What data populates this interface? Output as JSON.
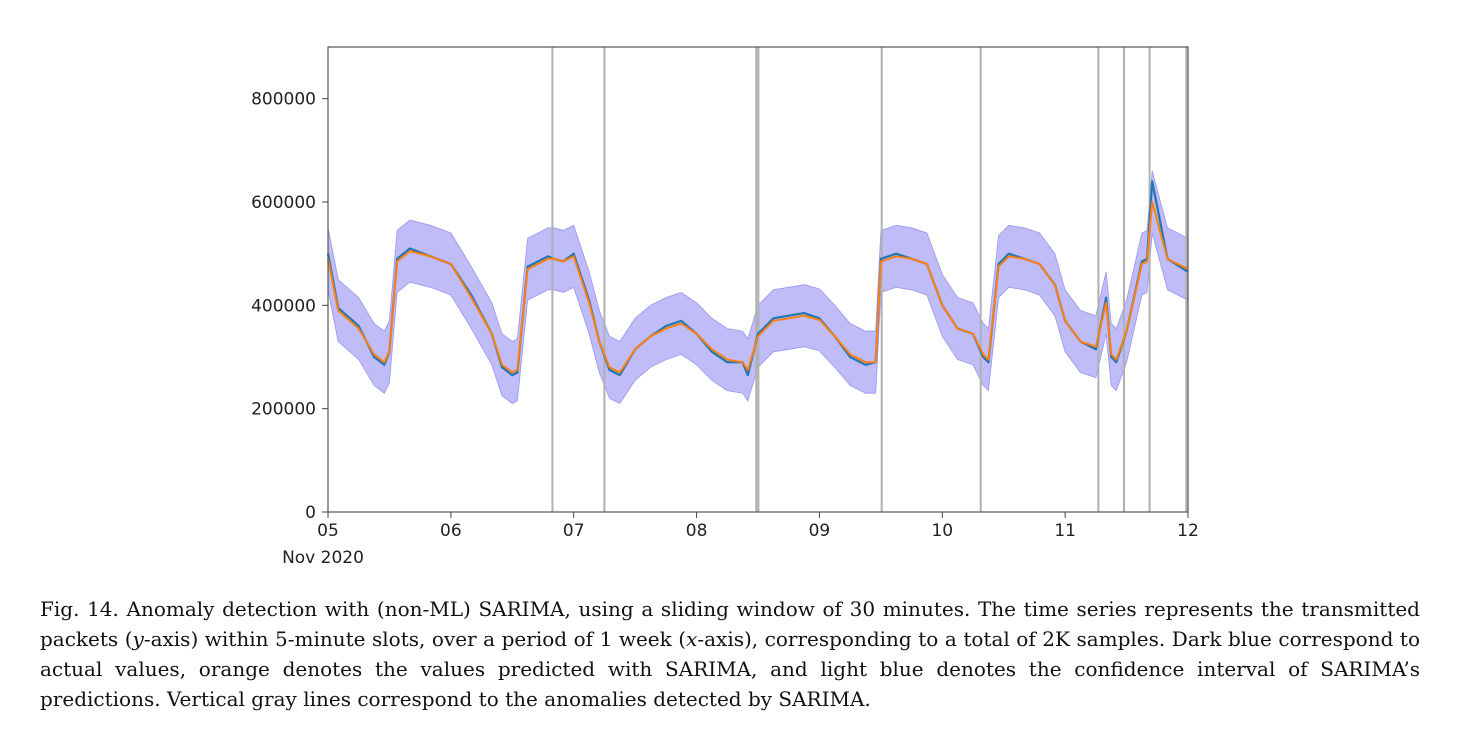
{
  "chart_data": {
    "type": "line",
    "title": "",
    "xlabel": "",
    "ylabel": "",
    "x_tick_labels": [
      "05",
      "06",
      "07",
      "08",
      "09",
      "10",
      "11",
      "12"
    ],
    "x_axis_sublabel": "Nov 2020",
    "x_range": [
      "2020-11-05T00:00",
      "2020-11-12T00:00"
    ],
    "ylim": [
      0,
      900000
    ],
    "y_ticks": [
      0,
      200000,
      400000,
      600000,
      800000
    ],
    "y_tick_labels": [
      "0",
      "200000",
      "400000",
      "600000",
      "800000"
    ],
    "grid": false,
    "legend": "none",
    "colors": {
      "actual": "#1f77b4",
      "predicted": "#ff7f0e",
      "confidence_band": "#a9a6f5",
      "anomaly_line": "#b0b0b0"
    },
    "series": [
      {
        "role": "actual",
        "x": [
          "2020-11-05T00:00",
          "2020-11-05T02:00",
          "2020-11-05T06:00",
          "2020-11-05T09:00",
          "2020-11-05T11:00",
          "2020-11-05T12:00",
          "2020-11-05T13:30",
          "2020-11-05T16:00",
          "2020-11-05T20:00",
          "2020-11-06T00:00",
          "2020-11-06T04:00",
          "2020-11-06T08:00",
          "2020-11-06T10:00",
          "2020-11-06T12:00",
          "2020-11-06T13:00",
          "2020-11-06T15:00",
          "2020-11-06T19:00",
          "2020-11-06T20:00",
          "2020-11-06T22:00",
          "2020-11-07T00:00",
          "2020-11-07T03:00",
          "2020-11-07T05:00",
          "2020-11-07T07:00",
          "2020-11-07T09:00",
          "2020-11-07T12:00",
          "2020-11-07T15:00",
          "2020-11-07T18:00",
          "2020-11-07T21:00",
          "2020-11-08T00:00",
          "2020-11-08T03:00",
          "2020-11-08T06:00",
          "2020-11-08T09:00",
          "2020-11-08T10:00",
          "2020-11-08T12:00",
          "2020-11-08T15:00",
          "2020-11-08T18:00",
          "2020-11-08T21:00",
          "2020-11-09T00:00",
          "2020-11-09T03:00",
          "2020-11-09T06:00",
          "2020-11-09T09:00",
          "2020-11-09T11:00",
          "2020-11-09T12:00",
          "2020-11-09T15:00",
          "2020-11-09T18:00",
          "2020-11-09T21:00",
          "2020-11-10T00:00",
          "2020-11-10T03:00",
          "2020-11-10T06:00",
          "2020-11-10T08:00",
          "2020-11-10T09:00",
          "2020-11-10T11:00",
          "2020-11-10T13:00",
          "2020-11-10T16:00",
          "2020-11-10T19:00",
          "2020-11-10T22:00",
          "2020-11-11T00:00",
          "2020-11-11T03:00",
          "2020-11-11T06:00",
          "2020-11-11T08:00",
          "2020-11-11T09:00",
          "2020-11-11T10:00",
          "2020-11-11T12:00",
          "2020-11-11T15:00",
          "2020-11-11T16:00",
          "2020-11-11T17:00",
          "2020-11-11T20:00",
          "2020-11-12T00:00"
        ],
        "y": [
          500000,
          395000,
          360000,
          300000,
          285000,
          310000,
          490000,
          510000,
          495000,
          480000,
          420000,
          345000,
          280000,
          265000,
          270000,
          475000,
          495000,
          490000,
          485000,
          500000,
          410000,
          330000,
          275000,
          265000,
          315000,
          340000,
          360000,
          370000,
          345000,
          310000,
          290000,
          290000,
          265000,
          345000,
          375000,
          380000,
          385000,
          375000,
          340000,
          300000,
          285000,
          290000,
          490000,
          500000,
          490000,
          480000,
          400000,
          355000,
          345000,
          300000,
          290000,
          480000,
          500000,
          490000,
          480000,
          440000,
          370000,
          330000,
          315000,
          415000,
          300000,
          290000,
          350000,
          485000,
          490000,
          640000,
          490000,
          465000
        ]
      },
      {
        "role": "predicted",
        "x": [
          "2020-11-05T00:00",
          "2020-11-05T02:00",
          "2020-11-05T06:00",
          "2020-11-05T09:00",
          "2020-11-05T11:00",
          "2020-11-05T12:00",
          "2020-11-05T13:30",
          "2020-11-05T16:00",
          "2020-11-05T20:00",
          "2020-11-06T00:00",
          "2020-11-06T04:00",
          "2020-11-06T08:00",
          "2020-11-06T10:00",
          "2020-11-06T12:00",
          "2020-11-06T13:00",
          "2020-11-06T15:00",
          "2020-11-06T19:00",
          "2020-11-06T20:00",
          "2020-11-06T22:00",
          "2020-11-07T00:00",
          "2020-11-07T03:00",
          "2020-11-07T05:00",
          "2020-11-07T07:00",
          "2020-11-07T09:00",
          "2020-11-07T12:00",
          "2020-11-07T15:00",
          "2020-11-07T18:00",
          "2020-11-07T21:00",
          "2020-11-08T00:00",
          "2020-11-08T03:00",
          "2020-11-08T06:00",
          "2020-11-08T09:00",
          "2020-11-08T10:00",
          "2020-11-08T12:00",
          "2020-11-08T15:00",
          "2020-11-08T18:00",
          "2020-11-08T21:00",
          "2020-11-09T00:00",
          "2020-11-09T03:00",
          "2020-11-09T06:00",
          "2020-11-09T09:00",
          "2020-11-09T11:00",
          "2020-11-09T12:00",
          "2020-11-09T15:00",
          "2020-11-09T18:00",
          "2020-11-09T21:00",
          "2020-11-10T00:00",
          "2020-11-10T03:00",
          "2020-11-10T06:00",
          "2020-11-10T08:00",
          "2020-11-10T09:00",
          "2020-11-10T11:00",
          "2020-11-10T13:00",
          "2020-11-10T16:00",
          "2020-11-10T19:00",
          "2020-11-10T22:00",
          "2020-11-11T00:00",
          "2020-11-11T03:00",
          "2020-11-11T06:00",
          "2020-11-11T08:00",
          "2020-11-11T09:00",
          "2020-11-11T10:00",
          "2020-11-11T12:00",
          "2020-11-11T15:00",
          "2020-11-11T16:00",
          "2020-11-11T17:00",
          "2020-11-11T20:00",
          "2020-11-12T00:00"
        ],
        "y": [
          490000,
          390000,
          355000,
          305000,
          290000,
          310000,
          485000,
          505000,
          495000,
          480000,
          415000,
          345000,
          285000,
          270000,
          275000,
          470000,
          490000,
          490000,
          485000,
          495000,
          405000,
          330000,
          280000,
          270000,
          315000,
          340000,
          355000,
          365000,
          345000,
          315000,
          295000,
          290000,
          275000,
          340000,
          370000,
          375000,
          380000,
          372000,
          340000,
          305000,
          290000,
          290000,
          485000,
          495000,
          490000,
          480000,
          400000,
          355000,
          345000,
          305000,
          295000,
          475000,
          495000,
          490000,
          480000,
          440000,
          370000,
          330000,
          320000,
          405000,
          305000,
          295000,
          350000,
          480000,
          485000,
          600000,
          490000,
          470000
        ]
      }
    ],
    "confidence_band": {
      "half_width": 60000,
      "applies_to": "predicted"
    },
    "anomalies_x": [
      "2020-11-06T19:50",
      "2020-11-07T06:00",
      "2020-11-08T11:40",
      "2020-11-08T12:05",
      "2020-11-09T12:10",
      "2020-11-10T07:30",
      "2020-11-11T06:30",
      "2020-11-11T11:30",
      "2020-11-11T16:30",
      "2020-11-11T23:40"
    ]
  },
  "caption": {
    "text_1": "Fig. 14.  Anomaly detection with (non-ML) SARIMA, using a sliding window of 30 minutes. The time series represents the transmitted packets (",
    "y_symbol": "y",
    "text_2": "-axis) within 5-minute slots, over a period of 1 week (",
    "x_symbol": "x",
    "text_3": "-axis), corresponding to a total of 2K samples. Dark blue correspond to actual values, orange denotes the values predicted with SARIMA, and light blue denotes the confidence interval of SARIMA’s predictions. Vertical gray lines correspond to the anomalies detected by SARIMA."
  }
}
